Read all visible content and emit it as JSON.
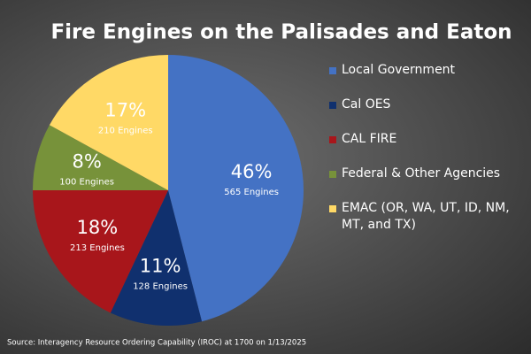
{
  "chart_data": {
    "type": "pie",
    "title": "Fire Engines on the Palisades and Eaton",
    "categories": [
      "Local Government",
      "Cal OES",
      "CAL FIRE",
      "Federal & Other Agencies",
      "EMAC (OR, WA, UT, ID, NM, MT, and TX)"
    ],
    "values": [
      46,
      11,
      18,
      8,
      17
    ],
    "value_labels": [
      "46%",
      "11%",
      "18%",
      "8%",
      "17%"
    ],
    "engine_labels": [
      "565 Engines",
      "128 Engines",
      "213 Engines",
      "100 Engines",
      "210 Engines"
    ],
    "colors": [
      "#4472c4",
      "#10306e",
      "#a8161b",
      "#77923a",
      "#ffd966"
    ],
    "source": "Source: Interagency Resource Ordering Capability (IROC) at 1700 on 1/13/2025"
  }
}
